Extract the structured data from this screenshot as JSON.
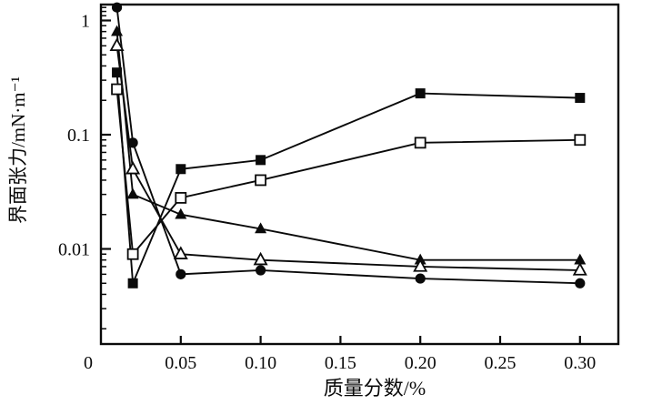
{
  "figure": {
    "background_color": "#ffffff",
    "ink_color": "#0a0a0a"
  },
  "chart_data": {
    "type": "line",
    "title": "",
    "xlabel": "质量分数/%",
    "ylabel": "界面张力/mN·m⁻¹",
    "x_scale": "linear",
    "y_scale": "log",
    "xlim": [
      0,
      0.324
    ],
    "ylim": [
      0.00147,
      1.4
    ],
    "grid": false,
    "legend_position": "none",
    "x_ticks": [
      0,
      0.05,
      0.1,
      0.15,
      0.2,
      0.25,
      0.3
    ],
    "x_tick_labels": [
      "0",
      "0.05",
      "0.10",
      "0.15",
      "0.20",
      "0.25",
      "0.30"
    ],
    "y_ticks": [
      1,
      0.1,
      0.01
    ],
    "y_tick_labels": [
      "1",
      "0.1",
      "0.01"
    ],
    "x": [
      0.01,
      0.02,
      0.05,
      0.1,
      0.2,
      0.3
    ],
    "series": [
      {
        "name": "filled-square-series",
        "marker": "filled-square",
        "values": [
          0.35,
          0.005,
          0.05,
          0.06,
          0.23,
          0.21
        ]
      },
      {
        "name": "open-square-series",
        "marker": "open-square",
        "values": [
          0.25,
          0.009,
          0.028,
          0.04,
          0.085,
          0.09
        ]
      },
      {
        "name": "filled-triangle-series",
        "marker": "filled-triangle",
        "values": [
          0.8,
          0.03,
          0.02,
          0.015,
          0.008,
          0.008
        ]
      },
      {
        "name": "open-triangle-series",
        "marker": "open-triangle",
        "values": [
          0.6,
          0.05,
          0.009,
          0.008,
          0.007,
          0.0065
        ]
      },
      {
        "name": "filled-circle-series",
        "marker": "filled-circle",
        "values": [
          1.3,
          0.085,
          0.006,
          0.0065,
          0.0055,
          0.005
        ]
      }
    ]
  }
}
